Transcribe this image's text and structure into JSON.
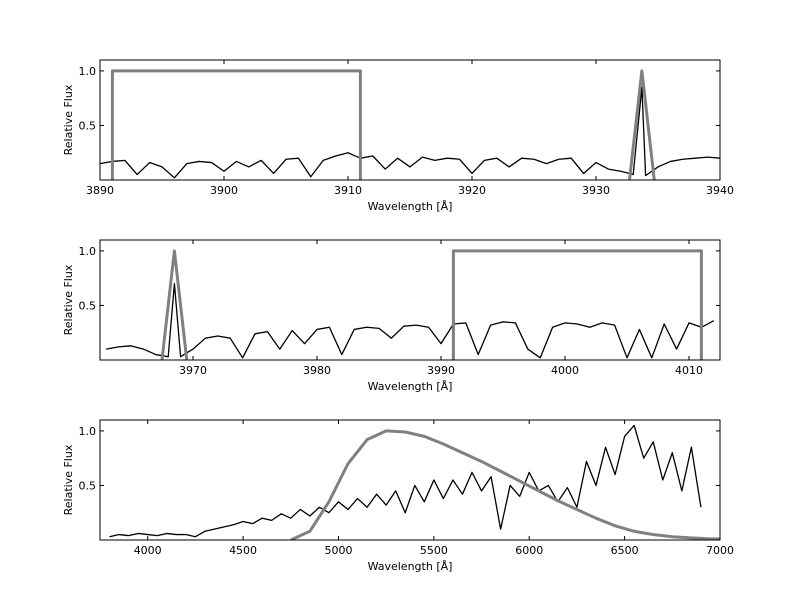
{
  "chart_data": [
    {
      "type": "line",
      "xlabel": "Wavelength [Å]",
      "ylabel": "Relative Flux",
      "xlim": [
        3890,
        3940
      ],
      "ylim": [
        0,
        1.1
      ],
      "xticks": [
        3890,
        3900,
        3910,
        3920,
        3930,
        3940
      ],
      "yticks": [
        0.5,
        {
          "value": 1,
          "label": "1.0"
        }
      ],
      "series": [
        {
          "color": "#000000",
          "x": [
            3890,
            3891,
            3892,
            3893,
            3894,
            3895,
            3896,
            3897,
            3898,
            3899,
            3900,
            3901,
            3902,
            3903,
            3904,
            3905,
            3906,
            3907,
            3908,
            3909,
            3910,
            3911,
            3912,
            3913,
            3914,
            3915,
            3916,
            3917,
            3918,
            3919,
            3920,
            3921,
            3922,
            3923,
            3924,
            3925,
            3926,
            3927,
            3928,
            3929,
            3930,
            3931,
            3932,
            3933,
            3933.7,
            3934,
            3935,
            3936,
            3937,
            3938,
            3939,
            3940
          ],
          "values": [
            0.15,
            0.17,
            0.18,
            0.05,
            0.16,
            0.12,
            0.02,
            0.15,
            0.17,
            0.16,
            0.08,
            0.17,
            0.12,
            0.18,
            0.06,
            0.19,
            0.2,
            0.03,
            0.18,
            0.22,
            0.25,
            0.2,
            0.22,
            0.1,
            0.2,
            0.12,
            0.21,
            0.18,
            0.2,
            0.19,
            0.06,
            0.18,
            0.2,
            0.12,
            0.2,
            0.19,
            0.15,
            0.19,
            0.2,
            0.06,
            0.16,
            0.1,
            0.08,
            0.05,
            0.85,
            0.04,
            0.12,
            0.17,
            0.19,
            0.2,
            0.21,
            0.2
          ]
        },
        {
          "color": "#808080",
          "x": [
            3891,
            3891,
            3911,
            3911,
            3912,
            3932.7,
            3933.7,
            3934.7
          ],
          "values": [
            0,
            1,
            1,
            0,
            null,
            0,
            1,
            0
          ]
        }
      ]
    },
    {
      "type": "line",
      "xlabel": "Wavelength [Å]",
      "ylabel": "Relative Flux",
      "xlim": [
        3962.5,
        4012.5
      ],
      "ylim": [
        0,
        1.1
      ],
      "xticks": [
        3970,
        3980,
        3990,
        4000,
        4010
      ],
      "yticks": [
        0.5,
        {
          "value": 1,
          "label": "1.0"
        }
      ],
      "series": [
        {
          "color": "#000000",
          "x": [
            3963,
            3964,
            3965,
            3966,
            3967,
            3968,
            3968.5,
            3969,
            3970,
            3971,
            3972,
            3973,
            3974,
            3975,
            3976,
            3977,
            3978,
            3979,
            3980,
            3981,
            3982,
            3983,
            3984,
            3985,
            3986,
            3987,
            3988,
            3989,
            3990,
            3991,
            3992,
            3993,
            3994,
            3995,
            3996,
            3997,
            3998,
            3999,
            4000,
            4001,
            4002,
            4003,
            4004,
            4005,
            4006,
            4007,
            4008,
            4009,
            4010,
            4011,
            4012
          ],
          "values": [
            0.1,
            0.12,
            0.13,
            0.1,
            0.05,
            0.03,
            0.7,
            0.03,
            0.1,
            0.2,
            0.22,
            0.2,
            0.02,
            0.24,
            0.26,
            0.1,
            0.27,
            0.15,
            0.28,
            0.3,
            0.05,
            0.28,
            0.3,
            0.29,
            0.2,
            0.31,
            0.32,
            0.3,
            0.15,
            0.33,
            0.34,
            0.05,
            0.32,
            0.35,
            0.34,
            0.1,
            0.02,
            0.3,
            0.34,
            0.33,
            0.3,
            0.34,
            0.32,
            0.02,
            0.28,
            0.02,
            0.33,
            0.1,
            0.34,
            0.3,
            0.36
          ]
        },
        {
          "color": "#808080",
          "x": [
            3967.5,
            3968.5,
            3969.5,
            3980,
            3991,
            3991,
            4011,
            4011
          ],
          "values": [
            0,
            1,
            0,
            null,
            0,
            1,
            1,
            0
          ]
        }
      ]
    },
    {
      "type": "line",
      "xlabel": "Wavelength [Å]",
      "ylabel": "Relative Flux",
      "xlim": [
        3750,
        7000
      ],
      "ylim": [
        0,
        1.1
      ],
      "xticks": [
        4000,
        4500,
        5000,
        5500,
        6000,
        6500,
        7000
      ],
      "yticks": [
        0.5,
        {
          "value": 1,
          "label": "1.0"
        }
      ],
      "series": [
        {
          "color": "#000000",
          "x": [
            3800,
            3850,
            3900,
            3950,
            4000,
            4050,
            4100,
            4150,
            4200,
            4250,
            4300,
            4350,
            4400,
            4450,
            4500,
            4550,
            4600,
            4650,
            4700,
            4750,
            4800,
            4850,
            4900,
            4950,
            5000,
            5050,
            5100,
            5150,
            5200,
            5250,
            5300,
            5350,
            5400,
            5450,
            5500,
            5550,
            5600,
            5650,
            5700,
            5750,
            5800,
            5850,
            5900,
            5950,
            6000,
            6050,
            6100,
            6150,
            6200,
            6250,
            6300,
            6350,
            6400,
            6450,
            6500,
            6550,
            6600,
            6650,
            6700,
            6750,
            6800,
            6850,
            6900
          ],
          "values": [
            0.03,
            0.05,
            0.04,
            0.06,
            0.05,
            0.04,
            0.06,
            0.05,
            0.05,
            0.03,
            0.08,
            0.1,
            0.12,
            0.14,
            0.17,
            0.15,
            0.2,
            0.18,
            0.24,
            0.2,
            0.28,
            0.22,
            0.3,
            0.25,
            0.35,
            0.28,
            0.38,
            0.3,
            0.42,
            0.32,
            0.45,
            0.25,
            0.5,
            0.35,
            0.55,
            0.38,
            0.55,
            0.42,
            0.62,
            0.45,
            0.58,
            0.1,
            0.5,
            0.4,
            0.62,
            0.45,
            0.5,
            0.35,
            0.48,
            0.3,
            0.72,
            0.5,
            0.85,
            0.6,
            0.95,
            1.05,
            0.75,
            0.9,
            0.55,
            0.8,
            0.45,
            0.85,
            0.3
          ]
        },
        {
          "color": "#808080",
          "x": [
            4750,
            4850,
            4950,
            5050,
            5150,
            5250,
            5350,
            5450,
            5550,
            5650,
            5750,
            5850,
            5950,
            6050,
            6150,
            6250,
            6350,
            6450,
            6550,
            6650,
            6750,
            6850,
            6950,
            7000
          ],
          "values": [
            0,
            0.08,
            0.35,
            0.7,
            0.92,
            1,
            0.99,
            0.95,
            0.88,
            0.8,
            0.72,
            0.63,
            0.54,
            0.45,
            0.36,
            0.28,
            0.2,
            0.13,
            0.08,
            0.05,
            0.03,
            0.02,
            0.01,
            0.01
          ]
        }
      ]
    }
  ]
}
